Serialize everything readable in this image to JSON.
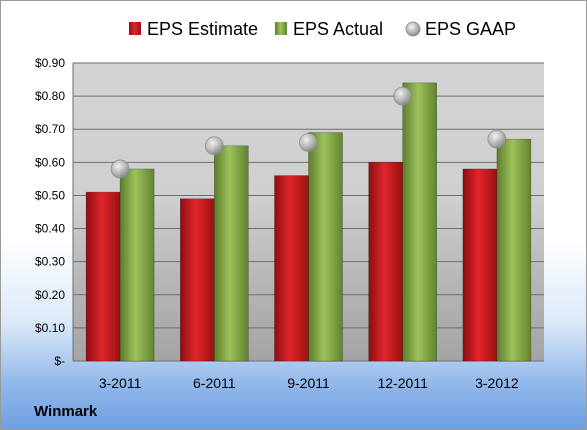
{
  "company": "Winmark",
  "chart_data": {
    "type": "bar",
    "title": "",
    "xlabel": "",
    "ylabel": "",
    "categories": [
      "3-2011",
      "6-2011",
      "9-2011",
      "12-2011",
      "3-2012"
    ],
    "series": [
      {
        "name": "EPS Estimate",
        "kind": "bar",
        "color": "#c0141a",
        "values": [
          0.51,
          0.49,
          0.56,
          0.6,
          0.58
        ]
      },
      {
        "name": "EPS Actual",
        "kind": "bar",
        "color": "#7ea341",
        "values": [
          0.58,
          0.65,
          0.69,
          0.84,
          0.67
        ]
      },
      {
        "name": "EPS GAAP",
        "kind": "marker",
        "color": "#b0b0b0",
        "values": [
          0.58,
          0.65,
          0.66,
          0.8,
          0.67
        ]
      }
    ],
    "ylim": [
      0,
      0.9
    ],
    "yticks": [
      0,
      0.1,
      0.2,
      0.3,
      0.4,
      0.5,
      0.6,
      0.7,
      0.8,
      0.9
    ],
    "ytick_labels": [
      "$-",
      "$0.10",
      "$0.20",
      "$0.30",
      "$0.40",
      "$0.50",
      "$0.60",
      "$0.70",
      "$0.80",
      "$0.90"
    ],
    "grid": true,
    "legend_position": "top"
  }
}
